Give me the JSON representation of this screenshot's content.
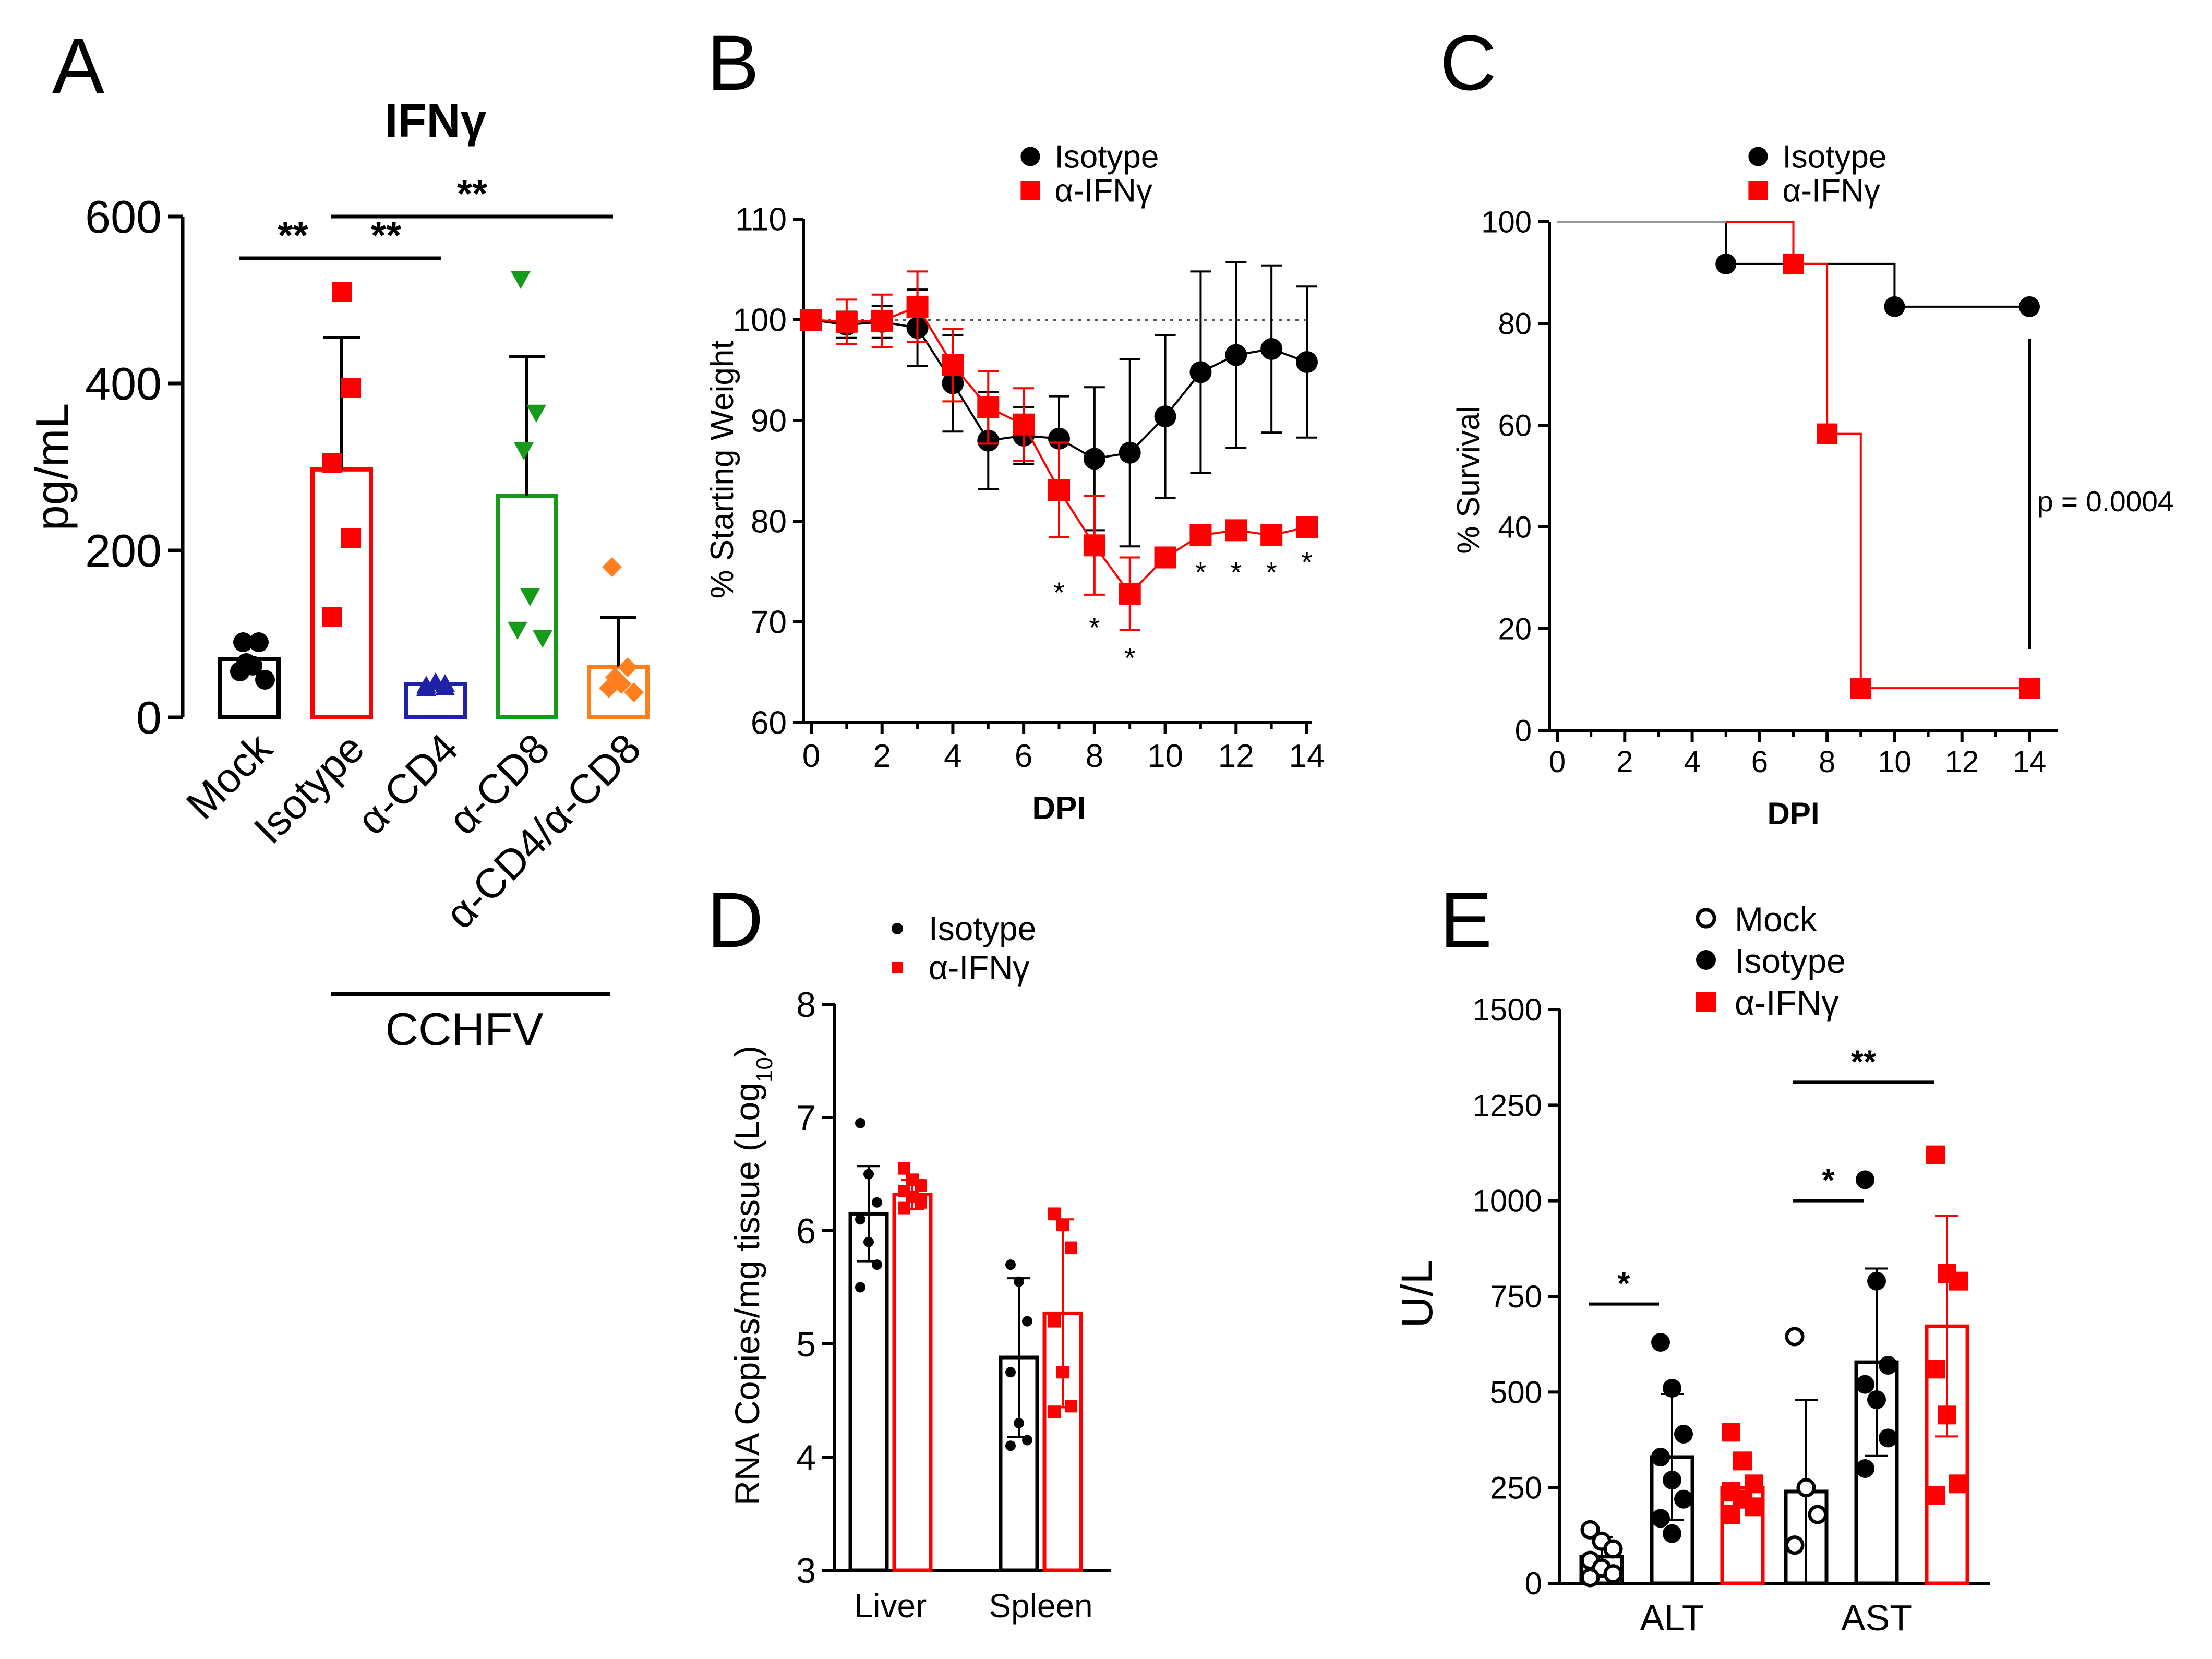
{
  "chart_data": [
    {
      "panel": "A",
      "type": "bar",
      "title": "IFNγ",
      "ylabel": "pg/mL",
      "ylim": [
        0,
        600
      ],
      "yticks": [
        0,
        200,
        400,
        600
      ],
      "categories": [
        "Mock",
        "Isotype",
        "α-CD4",
        "α-CD8",
        "α-CD4/α-CD8"
      ],
      "group_label": "CCHFV",
      "colors": [
        "#000000",
        "#ff0000",
        "#1f22a8",
        "#159a1a",
        "#ff7f1e"
      ],
      "markers": [
        "circle",
        "square",
        "triangle-up",
        "triangle-down",
        "diamond"
      ],
      "means": [
        70,
        297,
        40,
        265,
        60
      ],
      "errors": [
        0,
        158,
        0,
        167,
        60
      ],
      "points": [
        [
          90,
          90,
          65,
          62,
          55,
          45
        ],
        [
          510,
          395,
          305,
          215,
          120
        ],
        [
          42,
          40,
          38,
          36,
          35
        ],
        [
          525,
          365,
          320,
          145,
          105,
          95
        ],
        [
          180,
          60,
          48,
          40,
          35,
          30
        ]
      ],
      "significance": [
        {
          "from": 0,
          "to": 1,
          "label": "**",
          "y": 550
        },
        {
          "from": 1,
          "to": 2,
          "label": "**",
          "y": 550
        },
        {
          "from": 1,
          "to": 4,
          "label": "**",
          "y": 600
        }
      ]
    },
    {
      "panel": "B",
      "type": "line",
      "xlabel": "DPI",
      "ylabel": "% Starting Weight",
      "xlim": [
        0,
        14
      ],
      "xticks": [
        0,
        2,
        4,
        6,
        8,
        10,
        12,
        14
      ],
      "ylim": [
        60,
        110
      ],
      "yticks": [
        60,
        70,
        80,
        90,
        100,
        110
      ],
      "reference_line": 100,
      "legend": [
        "Isotype",
        "α-IFNγ"
      ],
      "series": [
        {
          "name": "Isotype",
          "color": "#000000",
          "marker": "circle",
          "x": [
            0,
            1,
            2,
            3,
            4,
            5,
            6,
            7,
            8,
            9,
            10,
            11,
            12,
            13,
            14
          ],
          "y": [
            100,
            99.5,
            99.8,
            99.2,
            93.7,
            88,
            88.5,
            88.2,
            86.2,
            86.8,
            90.4,
            94.8,
            96.5,
            97.1,
            95.8
          ],
          "err": [
            0,
            1.3,
            1.6,
            3.8,
            4.8,
            4.8,
            2.8,
            4.2,
            7.1,
            9.3,
            8.1,
            10,
            9.2,
            8.3,
            7.5
          ]
        },
        {
          "name": "α-IFNγ",
          "color": "#ff0000",
          "marker": "square",
          "x": [
            0,
            1,
            2,
            3,
            4,
            5,
            6,
            7,
            8,
            9,
            10,
            11,
            12,
            13,
            14
          ],
          "y": [
            100,
            99.8,
            99.9,
            101.3,
            95.5,
            91.3,
            89.6,
            83.1,
            77.6,
            72.8,
            76.4,
            78.6,
            79.1,
            78.6,
            79.4
          ],
          "err": [
            0,
            2.2,
            2.6,
            3.5,
            3.6,
            3.6,
            3.6,
            4.7,
            4.9,
            3.6,
            0,
            0,
            0,
            0,
            0
          ]
        }
      ],
      "annotations": [
        {
          "x": 7,
          "y": 73,
          "text": "*"
        },
        {
          "x": 8,
          "y": 69.5,
          "text": "*"
        },
        {
          "x": 9,
          "y": 66.5,
          "text": "*"
        },
        {
          "x": 11,
          "y": 75,
          "text": "*"
        },
        {
          "x": 12,
          "y": 75,
          "text": "*"
        },
        {
          "x": 13,
          "y": 75,
          "text": "*"
        },
        {
          "x": 14,
          "y": 76,
          "text": "*"
        }
      ]
    },
    {
      "panel": "C",
      "type": "line",
      "subtype": "survival",
      "xlabel": "DPI",
      "ylabel": "% Survival",
      "xlim": [
        0,
        14
      ],
      "xticks": [
        0,
        2,
        4,
        6,
        8,
        10,
        12,
        14
      ],
      "ylim": [
        0,
        100
      ],
      "yticks": [
        0,
        20,
        40,
        60,
        80,
        100
      ],
      "legend": [
        "Isotype",
        "α-IFNγ"
      ],
      "series": [
        {
          "name": "Isotype",
          "color": "#000000",
          "marker": "circle",
          "steps": [
            [
              0,
              100
            ],
            [
              5,
              91.7
            ],
            [
              10,
              83.3
            ],
            [
              14,
              83.3
            ]
          ],
          "marked": [
            [
              5,
              91.7
            ],
            [
              10,
              83.3
            ],
            [
              14,
              83.3
            ]
          ]
        },
        {
          "name": "α-IFNγ",
          "color": "#ff0000",
          "marker": "square",
          "steps": [
            [
              0,
              100
            ],
            [
              7,
              91.7
            ],
            [
              8,
              58.3
            ],
            [
              9,
              8.3
            ],
            [
              14,
              8.3
            ]
          ],
          "marked": [
            [
              7,
              91.7
            ],
            [
              8,
              58.3
            ],
            [
              9,
              8.3
            ],
            [
              14,
              8.3
            ]
          ]
        }
      ],
      "pvalue": {
        "text": "p = 0.0004",
        "x": 14,
        "y_from": 77,
        "y_to": 16
      }
    },
    {
      "panel": "D",
      "type": "bar",
      "ylabel": "RNA Copies/mg tissue (Log",
      "ylabel_sub": "10",
      "ylabel_close": ")",
      "ylim": [
        3,
        8
      ],
      "yticks": [
        3,
        4,
        5,
        6,
        7,
        8
      ],
      "categories": [
        "Liver",
        "Spleen"
      ],
      "legend": [
        "Isotype",
        "α-IFNγ"
      ],
      "series": [
        {
          "name": "Isotype",
          "color": "#000000",
          "marker": "circle",
          "means": [
            6.15,
            4.88
          ],
          "errors": [
            0.42,
            0.7
          ],
          "points": [
            [
              6.95,
              6.5,
              6.25,
              6.1,
              5.9,
              5.7,
              5.5
            ],
            [
              5.7,
              5.55,
              5.2,
              4.75,
              4.3,
              4.15,
              4.1
            ]
          ]
        },
        {
          "name": "α-IFNγ",
          "color": "#ff0000",
          "marker": "square",
          "means": [
            6.32,
            5.27
          ],
          "errors": [
            0.13,
            0.83
          ],
          "points": [
            [
              6.55,
              6.45,
              6.4,
              6.35,
              6.3,
              6.25,
              6.2
            ],
            [
              6.15,
              6.05,
              5.85,
              5.2,
              4.75,
              4.45,
              4.4
            ]
          ]
        }
      ]
    },
    {
      "panel": "E",
      "type": "bar",
      "ylabel": "U/L",
      "ylim": [
        0,
        1500
      ],
      "yticks": [
        0,
        250,
        500,
        750,
        1000,
        1250,
        1500
      ],
      "categories": [
        "ALT",
        "AST"
      ],
      "legend": [
        "Mock",
        "Isotype",
        "α-IFNγ"
      ],
      "series": [
        {
          "name": "Mock",
          "color": "#000000",
          "marker": "circle-open",
          "means": [
            70,
            240
          ],
          "errors": [
            50,
            240
          ],
          "points": [
            [
              140,
              110,
              90,
              60,
              40,
              25,
              15
            ],
            [
              645,
              250,
              180,
              100
            ]
          ]
        },
        {
          "name": "Isotype",
          "color": "#000000",
          "marker": "circle",
          "means": [
            330,
            578
          ],
          "errors": [
            165,
            245
          ],
          "points": [
            [
              630,
              510,
              390,
              330,
              270,
              220,
              170,
              130
            ],
            [
              1055,
              790,
              570,
              520,
              480,
              380,
              300
            ]
          ]
        },
        {
          "name": "α-IFNγ",
          "color": "#ff0000",
          "marker": "square",
          "means": [
            250,
            672
          ],
          "errors": [
            0,
            288
          ],
          "points": [
            [
              395,
              320,
              260,
              240,
              220,
              200,
              180
            ],
            [
              1120,
              810,
              790,
              560,
              440,
              260,
              230
            ]
          ]
        }
      ],
      "significance": [
        {
          "group": 0,
          "from": 0,
          "to": 1,
          "label": "*",
          "y": 730
        },
        {
          "group": 1,
          "from": 0,
          "to": 1,
          "label": "*",
          "y": 1000
        },
        {
          "group": 1,
          "from": 0,
          "to": 2,
          "label": "**",
          "y": 1310
        }
      ]
    }
  ],
  "panel_labels": [
    "A",
    "B",
    "C",
    "D",
    "E"
  ]
}
